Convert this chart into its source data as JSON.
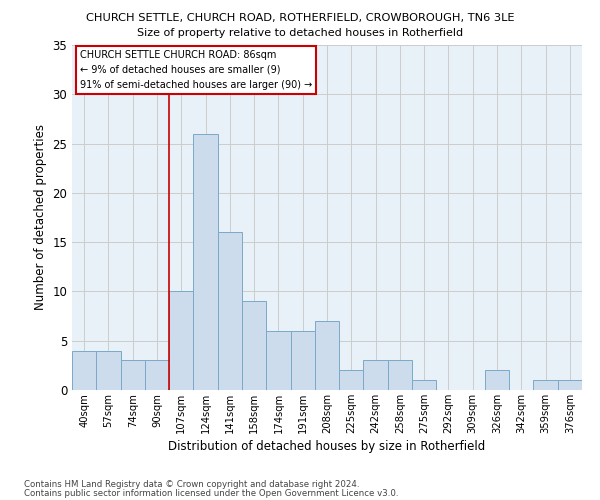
{
  "title1": "CHURCH SETTLE, CHURCH ROAD, ROTHERFIELD, CROWBOROUGH, TN6 3LE",
  "title2": "Size of property relative to detached houses in Rotherfield",
  "xlabel": "Distribution of detached houses by size in Rotherfield",
  "ylabel": "Number of detached properties",
  "categories": [
    "40sqm",
    "57sqm",
    "74sqm",
    "90sqm",
    "107sqm",
    "124sqm",
    "141sqm",
    "158sqm",
    "174sqm",
    "191sqm",
    "208sqm",
    "225sqm",
    "242sqm",
    "258sqm",
    "275sqm",
    "292sqm",
    "309sqm",
    "326sqm",
    "342sqm",
    "359sqm",
    "376sqm"
  ],
  "values": [
    4,
    4,
    3,
    3,
    10,
    26,
    16,
    9,
    6,
    6,
    7,
    2,
    3,
    3,
    1,
    0,
    0,
    2,
    0,
    1,
    1
  ],
  "bar_color": "#ccdcec",
  "bar_edgecolor": "#7aaac8",
  "grid_color": "#cccccc",
  "bg_color": "#e8f0f8",
  "vline_x": 3.5,
  "vline_color": "#cc0000",
  "ylim": [
    0,
    35
  ],
  "yticks": [
    0,
    5,
    10,
    15,
    20,
    25,
    30,
    35
  ],
  "annotation_title": "CHURCH SETTLE CHURCH ROAD: 86sqm",
  "annotation_line1": "← 9% of detached houses are smaller (9)",
  "annotation_line2": "91% of semi-detached houses are larger (90) →",
  "footnote1": "Contains HM Land Registry data © Crown copyright and database right 2024.",
  "footnote2": "Contains public sector information licensed under the Open Government Licence v3.0."
}
